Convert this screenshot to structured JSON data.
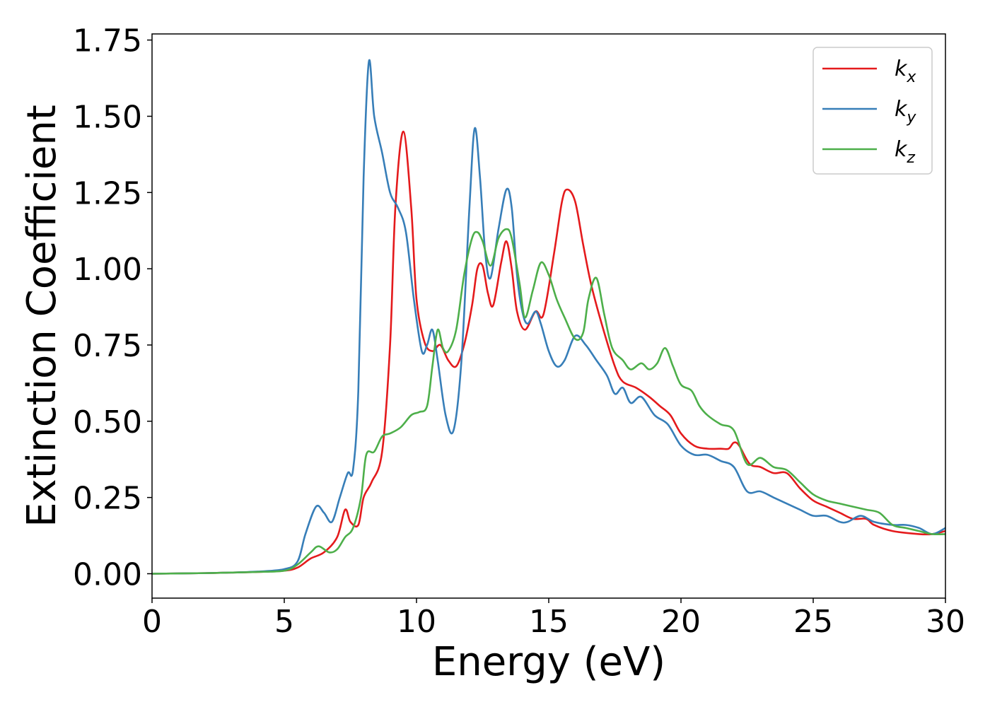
{
  "chart_data": {
    "type": "line",
    "xlabel": "Energy (eV)",
    "ylabel": "Extinction Coefficient",
    "xlim": [
      0,
      30
    ],
    "ylim": [
      -0.08,
      1.77
    ],
    "xticks": [
      "0",
      "5",
      "10",
      "15",
      "20",
      "25",
      "30"
    ],
    "yticks": [
      "0.00",
      "0.25",
      "0.50",
      "0.75",
      "1.00",
      "1.25",
      "1.50",
      "1.75"
    ],
    "grid": false,
    "legend_position": "top-right",
    "series": [
      {
        "name": "k",
        "subscript": "x",
        "color": "#e41a1c",
        "points": [
          [
            0,
            0.0
          ],
          [
            2,
            0.002
          ],
          [
            3,
            0.004
          ],
          [
            4,
            0.006
          ],
          [
            5,
            0.01
          ],
          [
            5.5,
            0.02
          ],
          [
            6,
            0.05
          ],
          [
            6.5,
            0.07
          ],
          [
            7,
            0.12
          ],
          [
            7.3,
            0.21
          ],
          [
            7.5,
            0.17
          ],
          [
            7.8,
            0.16
          ],
          [
            8,
            0.25
          ],
          [
            8.3,
            0.3
          ],
          [
            8.7,
            0.4
          ],
          [
            9,
            0.75
          ],
          [
            9.2,
            1.2
          ],
          [
            9.5,
            1.45
          ],
          [
            9.8,
            1.2
          ],
          [
            10,
            0.9
          ],
          [
            10.3,
            0.76
          ],
          [
            10.6,
            0.73
          ],
          [
            10.9,
            0.75
          ],
          [
            11.2,
            0.7
          ],
          [
            11.5,
            0.68
          ],
          [
            11.8,
            0.75
          ],
          [
            12.1,
            0.88
          ],
          [
            12.3,
            1.0
          ],
          [
            12.5,
            1.01
          ],
          [
            12.7,
            0.92
          ],
          [
            12.9,
            0.88
          ],
          [
            13.2,
            1.02
          ],
          [
            13.4,
            1.09
          ],
          [
            13.6,
            1.0
          ],
          [
            13.8,
            0.86
          ],
          [
            14.1,
            0.8
          ],
          [
            14.5,
            0.86
          ],
          [
            14.8,
            0.85
          ],
          [
            15.2,
            1.05
          ],
          [
            15.5,
            1.22
          ],
          [
            15.7,
            1.26
          ],
          [
            16,
            1.22
          ],
          [
            16.3,
            1.08
          ],
          [
            16.6,
            0.95
          ],
          [
            17,
            0.82
          ],
          [
            17.5,
            0.68
          ],
          [
            17.8,
            0.63
          ],
          [
            18.3,
            0.61
          ],
          [
            18.8,
            0.58
          ],
          [
            19.2,
            0.55
          ],
          [
            19.6,
            0.52
          ],
          [
            20,
            0.46
          ],
          [
            20.5,
            0.42
          ],
          [
            21,
            0.41
          ],
          [
            21.5,
            0.41
          ],
          [
            21.8,
            0.41
          ],
          [
            22,
            0.43
          ],
          [
            22.2,
            0.42
          ],
          [
            22.6,
            0.36
          ],
          [
            23,
            0.35
          ],
          [
            23.5,
            0.33
          ],
          [
            24,
            0.33
          ],
          [
            24.5,
            0.28
          ],
          [
            25,
            0.24
          ],
          [
            25.5,
            0.22
          ],
          [
            26,
            0.2
          ],
          [
            26.5,
            0.18
          ],
          [
            27,
            0.18
          ],
          [
            27.3,
            0.16
          ],
          [
            28,
            0.14
          ],
          [
            29,
            0.13
          ],
          [
            29.5,
            0.13
          ],
          [
            30,
            0.14
          ]
        ]
      },
      {
        "name": "k",
        "subscript": "y",
        "color": "#377eb8",
        "points": [
          [
            0,
            0.0
          ],
          [
            2,
            0.002
          ],
          [
            3,
            0.004
          ],
          [
            4,
            0.007
          ],
          [
            5,
            0.015
          ],
          [
            5.5,
            0.04
          ],
          [
            5.8,
            0.13
          ],
          [
            6.2,
            0.22
          ],
          [
            6.5,
            0.2
          ],
          [
            6.8,
            0.17
          ],
          [
            7.1,
            0.25
          ],
          [
            7.4,
            0.33
          ],
          [
            7.6,
            0.34
          ],
          [
            7.8,
            0.6
          ],
          [
            8,
            1.3
          ],
          [
            8.2,
            1.68
          ],
          [
            8.4,
            1.5
          ],
          [
            8.7,
            1.38
          ],
          [
            9,
            1.25
          ],
          [
            9.3,
            1.2
          ],
          [
            9.6,
            1.12
          ],
          [
            9.9,
            0.9
          ],
          [
            10.2,
            0.73
          ],
          [
            10.4,
            0.75
          ],
          [
            10.6,
            0.8
          ],
          [
            10.8,
            0.7
          ],
          [
            11.1,
            0.52
          ],
          [
            11.4,
            0.47
          ],
          [
            11.7,
            0.7
          ],
          [
            12,
            1.2
          ],
          [
            12.2,
            1.46
          ],
          [
            12.4,
            1.3
          ],
          [
            12.6,
            1.05
          ],
          [
            12.8,
            0.97
          ],
          [
            13.1,
            1.13
          ],
          [
            13.4,
            1.26
          ],
          [
            13.6,
            1.2
          ],
          [
            13.8,
            0.98
          ],
          [
            14,
            0.86
          ],
          [
            14.2,
            0.82
          ],
          [
            14.5,
            0.86
          ],
          [
            14.7,
            0.82
          ],
          [
            15,
            0.73
          ],
          [
            15.3,
            0.68
          ],
          [
            15.6,
            0.7
          ],
          [
            16,
            0.78
          ],
          [
            16.4,
            0.75
          ],
          [
            16.8,
            0.7
          ],
          [
            17.2,
            0.65
          ],
          [
            17.5,
            0.59
          ],
          [
            17.8,
            0.61
          ],
          [
            18.1,
            0.56
          ],
          [
            18.5,
            0.58
          ],
          [
            19,
            0.52
          ],
          [
            19.5,
            0.49
          ],
          [
            20,
            0.42
          ],
          [
            20.5,
            0.39
          ],
          [
            21,
            0.39
          ],
          [
            21.5,
            0.37
          ],
          [
            22,
            0.35
          ],
          [
            22.5,
            0.27
          ],
          [
            23,
            0.27
          ],
          [
            23.5,
            0.25
          ],
          [
            24,
            0.23
          ],
          [
            24.5,
            0.21
          ],
          [
            25,
            0.19
          ],
          [
            25.5,
            0.19
          ],
          [
            26,
            0.17
          ],
          [
            26.3,
            0.17
          ],
          [
            26.8,
            0.19
          ],
          [
            27.3,
            0.17
          ],
          [
            28,
            0.16
          ],
          [
            28.5,
            0.16
          ],
          [
            29,
            0.15
          ],
          [
            29.5,
            0.13
          ],
          [
            30,
            0.15
          ]
        ]
      },
      {
        "name": "k",
        "subscript": "z",
        "color": "#4daf4a",
        "points": [
          [
            0,
            0.0
          ],
          [
            2,
            0.002
          ],
          [
            3,
            0.004
          ],
          [
            4,
            0.006
          ],
          [
            5,
            0.01
          ],
          [
            5.5,
            0.03
          ],
          [
            6,
            0.07
          ],
          [
            6.3,
            0.09
          ],
          [
            6.7,
            0.07
          ],
          [
            7,
            0.08
          ],
          [
            7.3,
            0.12
          ],
          [
            7.6,
            0.15
          ],
          [
            7.9,
            0.25
          ],
          [
            8.1,
            0.39
          ],
          [
            8.4,
            0.4
          ],
          [
            8.7,
            0.45
          ],
          [
            9,
            0.46
          ],
          [
            9.4,
            0.48
          ],
          [
            9.8,
            0.52
          ],
          [
            10.1,
            0.53
          ],
          [
            10.4,
            0.55
          ],
          [
            10.6,
            0.68
          ],
          [
            10.8,
            0.8
          ],
          [
            11,
            0.74
          ],
          [
            11.2,
            0.73
          ],
          [
            11.5,
            0.8
          ],
          [
            11.8,
            0.98
          ],
          [
            12.1,
            1.1
          ],
          [
            12.3,
            1.12
          ],
          [
            12.5,
            1.09
          ],
          [
            12.8,
            1.01
          ],
          [
            13.1,
            1.1
          ],
          [
            13.4,
            1.13
          ],
          [
            13.6,
            1.1
          ],
          [
            13.9,
            0.95
          ],
          [
            14.1,
            0.84
          ],
          [
            14.4,
            0.93
          ],
          [
            14.7,
            1.02
          ],
          [
            15,
            0.98
          ],
          [
            15.3,
            0.9
          ],
          [
            15.6,
            0.84
          ],
          [
            16,
            0.77
          ],
          [
            16.3,
            0.79
          ],
          [
            16.5,
            0.9
          ],
          [
            16.8,
            0.97
          ],
          [
            17.1,
            0.85
          ],
          [
            17.4,
            0.74
          ],
          [
            17.8,
            0.7
          ],
          [
            18.1,
            0.67
          ],
          [
            18.5,
            0.69
          ],
          [
            18.8,
            0.67
          ],
          [
            19.1,
            0.69
          ],
          [
            19.4,
            0.74
          ],
          [
            19.7,
            0.68
          ],
          [
            20,
            0.62
          ],
          [
            20.4,
            0.6
          ],
          [
            20.7,
            0.55
          ],
          [
            21,
            0.52
          ],
          [
            21.5,
            0.49
          ],
          [
            22,
            0.47
          ],
          [
            22.5,
            0.36
          ],
          [
            23,
            0.38
          ],
          [
            23.5,
            0.35
          ],
          [
            24,
            0.34
          ],
          [
            24.5,
            0.3
          ],
          [
            25,
            0.26
          ],
          [
            25.5,
            0.24
          ],
          [
            26,
            0.23
          ],
          [
            26.5,
            0.22
          ],
          [
            27,
            0.21
          ],
          [
            27.5,
            0.2
          ],
          [
            28,
            0.16
          ],
          [
            28.5,
            0.15
          ],
          [
            29,
            0.14
          ],
          [
            29.5,
            0.13
          ],
          [
            30,
            0.13
          ]
        ]
      }
    ]
  }
}
